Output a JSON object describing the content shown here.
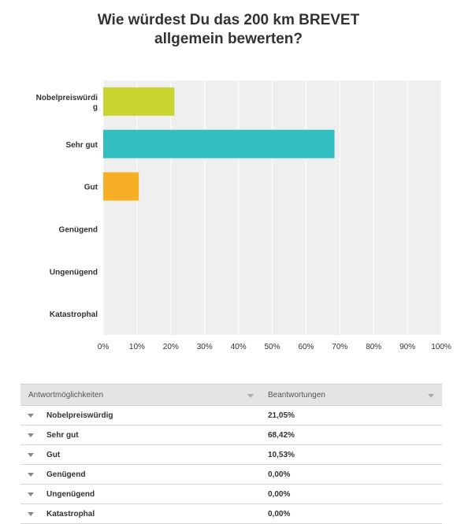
{
  "title_lines": [
    "Wie würdest Du das 200 km BREVET",
    "allgemein bewerten?"
  ],
  "chart_data": {
    "type": "bar",
    "orientation": "horizontal",
    "title": "Wie würdest Du das 200 km BREVET allgemein bewerten?",
    "categories": [
      "Nobelpreiswürdig",
      "Sehr gut",
      "Gut",
      "Genügend",
      "Ungenügend",
      "Katastrophal"
    ],
    "category_display": [
      [
        "Nobelpreiswürdi",
        "g"
      ],
      [
        "Sehr gut"
      ],
      [
        "Gut"
      ],
      [
        "Genügend"
      ],
      [
        "Ungenügend"
      ],
      [
        "Katastrophal"
      ]
    ],
    "values": [
      21.05,
      68.42,
      10.53,
      0,
      0,
      0
    ],
    "colors": [
      "#c8d531",
      "#33bfbf",
      "#f7b026",
      "#cccccc",
      "#cccccc",
      "#cccccc"
    ],
    "xlim": [
      0,
      100
    ],
    "xticks": [
      "0%",
      "10%",
      "20%",
      "30%",
      "40%",
      "50%",
      "60%",
      "70%",
      "80%",
      "90%",
      "100%"
    ],
    "grid": true,
    "plot_background": "#efefef"
  },
  "table": {
    "headers": [
      "Antwortmöglichkeiten",
      "Beantwortungen"
    ],
    "rows": [
      {
        "label": "Nobelpreiswürdig",
        "value": "21,05%"
      },
      {
        "label": "Sehr gut",
        "value": "68,42%"
      },
      {
        "label": "Gut",
        "value": "10,53%"
      },
      {
        "label": "Genügend",
        "value": "0,00%"
      },
      {
        "label": "Ungenügend",
        "value": "0,00%"
      },
      {
        "label": "Katastrophal",
        "value": "0,00%"
      }
    ]
  }
}
